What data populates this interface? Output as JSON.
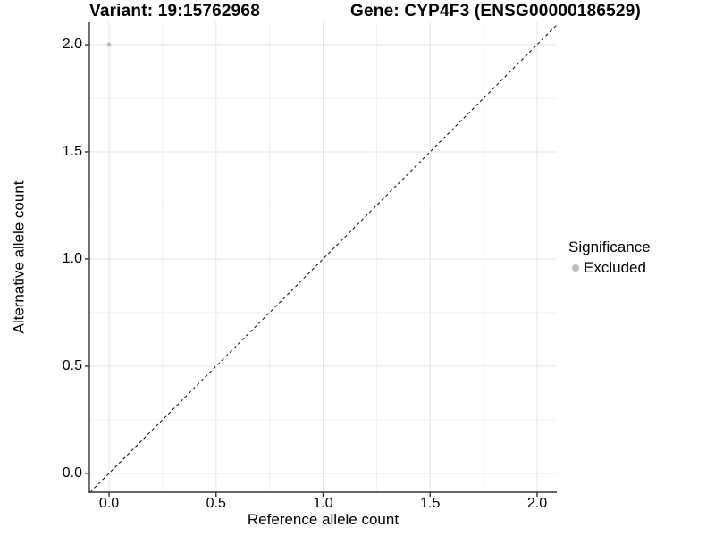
{
  "chart_data": {
    "type": "scatter",
    "title_left": "Variant: 19:15762968",
    "title_right": "Gene: CYP4F3 (ENSG00000186529)",
    "xlabel": "Reference allele count",
    "ylabel": "Alternative allele count",
    "xlim": [
      -0.092,
      2.092
    ],
    "ylim": [
      -0.088,
      2.104
    ],
    "xticks": {
      "values": [
        0.0,
        0.5,
        1.0,
        1.5,
        2.0
      ],
      "labels": [
        "0.0",
        "0.5",
        "1.0",
        "1.5",
        "2.0"
      ]
    },
    "yticks": {
      "values": [
        0.0,
        0.5,
        1.0,
        1.5,
        2.0
      ],
      "labels": [
        "0.0",
        "0.5",
        "1.0",
        "1.5",
        "2.0"
      ]
    },
    "minor_ticks_x": [
      0.25,
      0.75,
      1.25,
      1.75
    ],
    "minor_ticks_y": [
      0.25,
      0.75,
      1.25,
      1.75
    ],
    "grid": true,
    "points": [
      {
        "x": 0.0,
        "y": 2.0,
        "series": "Excluded",
        "color": "#bdbdbd",
        "r": 2.5
      }
    ],
    "identity_line": {
      "slope": 1,
      "intercept": 0,
      "style": "dashed"
    },
    "legend": {
      "title": "Significance",
      "position": "right",
      "items": [
        {
          "label": "Excluded",
          "color": "#bdbdbd"
        }
      ]
    },
    "colors": {
      "point_excluded": "#bdbdbd",
      "grid_major": "#e5e5e5",
      "grid_minor": "#f1f1f1",
      "axis_line": "#333333",
      "diagonal": "#1a1a1a",
      "text": "#000000",
      "background": "#ffffff"
    }
  }
}
